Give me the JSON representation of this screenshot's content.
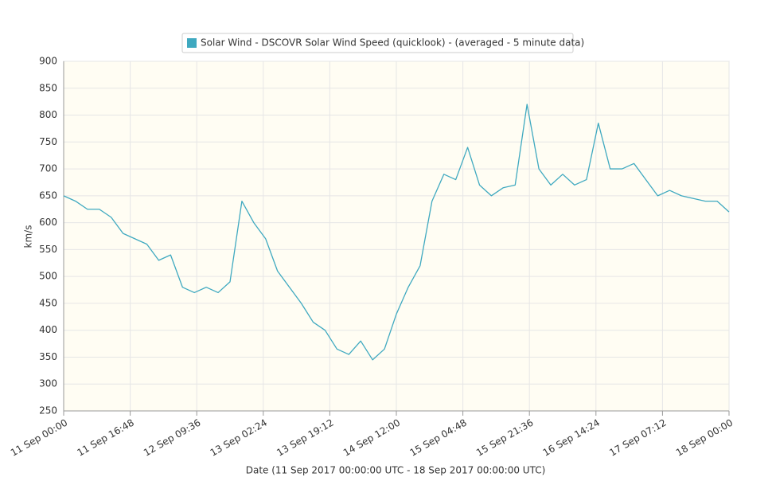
{
  "chart_data": {
    "type": "line",
    "legend": "Solar Wind - DSCOVR Solar Wind Speed (quicklook) -  (averaged - 5 minute data)",
    "y_label": "km/s",
    "x_label": "Date (11 Sep 2017 00:00:00 UTC - 18 Sep 2017 00:00:00 UTC)",
    "color": "#3fa9c0",
    "x": [
      "2017-09-11T00:00",
      "2017-09-11T03:00",
      "2017-09-11T06:00",
      "2017-09-11T09:00",
      "2017-09-11T12:00",
      "2017-09-11T15:00",
      "2017-09-11T18:00",
      "2017-09-11T21:00",
      "2017-09-12T00:00",
      "2017-09-12T03:00",
      "2017-09-12T06:00",
      "2017-09-12T09:00",
      "2017-09-12T12:00",
      "2017-09-12T15:00",
      "2017-09-12T18:00",
      "2017-09-12T21:00",
      "2017-09-13T00:00",
      "2017-09-13T03:00",
      "2017-09-13T06:00",
      "2017-09-13T09:00",
      "2017-09-13T12:00",
      "2017-09-13T15:00",
      "2017-09-13T18:00",
      "2017-09-13T21:00",
      "2017-09-14T00:00",
      "2017-09-14T03:00",
      "2017-09-14T06:00",
      "2017-09-14T09:00",
      "2017-09-14T12:00",
      "2017-09-14T15:00",
      "2017-09-14T18:00",
      "2017-09-14T21:00",
      "2017-09-15T00:00",
      "2017-09-15T03:00",
      "2017-09-15T06:00",
      "2017-09-15T09:00",
      "2017-09-15T12:00",
      "2017-09-15T15:00",
      "2017-09-15T18:00",
      "2017-09-15T21:00",
      "2017-09-16T00:00",
      "2017-09-16T03:00",
      "2017-09-16T06:00",
      "2017-09-16T09:00",
      "2017-09-16T12:00",
      "2017-09-16T15:00",
      "2017-09-16T18:00",
      "2017-09-16T21:00",
      "2017-09-17T00:00",
      "2017-09-17T03:00",
      "2017-09-17T06:00",
      "2017-09-17T09:00",
      "2017-09-17T12:00",
      "2017-09-17T15:00",
      "2017-09-17T18:00",
      "2017-09-17T21:00",
      "2017-09-18T00:00"
    ],
    "values": [
      650,
      640,
      625,
      625,
      610,
      580,
      570,
      560,
      530,
      540,
      480,
      470,
      480,
      470,
      490,
      640,
      600,
      570,
      510,
      480,
      450,
      415,
      400,
      365,
      355,
      380,
      345,
      365,
      430,
      480,
      520,
      640,
      690,
      680,
      740,
      670,
      650,
      665,
      670,
      820,
      700,
      670,
      690,
      670,
      680,
      785,
      700,
      700,
      710,
      680,
      650,
      660,
      650,
      645,
      640,
      640,
      620
    ],
    "xlim": [
      "2017-09-11T00:00",
      "2017-09-18T00:00"
    ],
    "xticks": [
      {
        "value": "2017-09-11T00:00",
        "label": "11 Sep 00:00"
      },
      {
        "value": "2017-09-11T16:48",
        "label": "11 Sep 16:48"
      },
      {
        "value": "2017-09-12T09:36",
        "label": "12 Sep 09:36"
      },
      {
        "value": "2017-09-13T02:24",
        "label": "13 Sep 02:24"
      },
      {
        "value": "2017-09-13T19:12",
        "label": "13 Sep 19:12"
      },
      {
        "value": "2017-09-14T12:00",
        "label": "14 Sep 12:00"
      },
      {
        "value": "2017-09-15T04:48",
        "label": "15 Sep 04:48"
      },
      {
        "value": "2017-09-15T21:36",
        "label": "15 Sep 21:36"
      },
      {
        "value": "2017-09-16T14:24",
        "label": "16 Sep 14:24"
      },
      {
        "value": "2017-09-17T07:12",
        "label": "17 Sep 07:12"
      },
      {
        "value": "2017-09-18T00:00",
        "label": "18 Sep 00:00"
      }
    ],
    "ylim": [
      250,
      900
    ],
    "yticks": [
      250,
      300,
      350,
      400,
      450,
      500,
      550,
      600,
      650,
      700,
      750,
      800,
      850,
      900
    ],
    "grid": true
  }
}
